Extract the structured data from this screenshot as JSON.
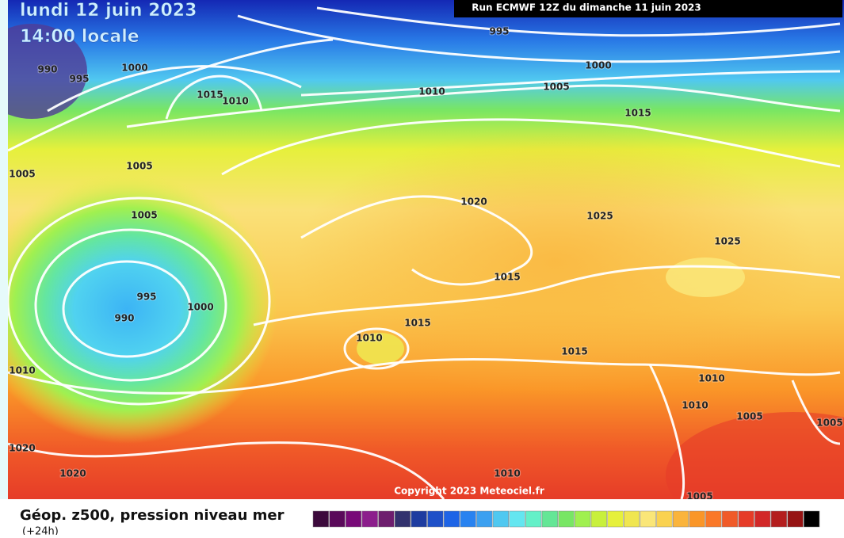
{
  "header": {
    "date": "lundi 12 juin 2023",
    "time": "14:00 locale",
    "run": "Run ECMWF 12Z du dimanche 11 juin 2023"
  },
  "map": {
    "isobar_labels": [
      "995",
      "1000",
      "1005",
      "1010",
      "1000",
      "995",
      "990",
      "1015",
      "1010",
      "1005",
      "1005",
      "1005",
      "1015",
      "1020",
      "1025",
      "1025",
      "1015",
      "995",
      "990",
      "1000",
      "1015",
      "1010",
      "1015",
      "1010",
      "1010",
      "1005",
      "1005",
      "1010",
      "1020",
      "1020",
      "1010",
      "1005"
    ],
    "copyright": "Copyright 2023 Meteociel.fr"
  },
  "legend": {
    "title": "Géop. z500, pression niveau mer",
    "subtitle": "(+24h)",
    "colors": [
      "#3c0a3c",
      "#5a0a5a",
      "#780a78",
      "#8c1e8c",
      "#6e1e6e",
      "#32326e",
      "#1e3ca0",
      "#1e50c8",
      "#1e64e6",
      "#2882f0",
      "#3ca0f0",
      "#50c8f0",
      "#64e6f0",
      "#64f0c8",
      "#64e696",
      "#78e664",
      "#a0f050",
      "#c8f03c",
      "#e6f03c",
      "#f0e650",
      "#fae678",
      "#fad250",
      "#fab43c",
      "#fa9628",
      "#fa7828",
      "#f05a28",
      "#e63c28",
      "#d22828",
      "#b41e1e",
      "#961414",
      "#000000"
    ]
  }
}
